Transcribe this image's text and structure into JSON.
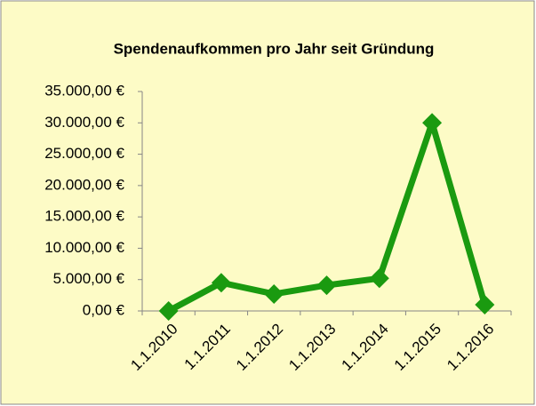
{
  "chart_data": {
    "type": "line",
    "title": "Spendenaufkommen pro Jahr seit Gründung",
    "categories": [
      "1.1.2010",
      "1.1.2011",
      "1.1.2012",
      "1.1.2013",
      "1.1.2014",
      "1.1.2015",
      "1.1.2016"
    ],
    "series": [
      {
        "name": "Spendenaufkommen",
        "color": "#1a9a10",
        "values": [
          0,
          4500,
          2700,
          4100,
          5200,
          30000,
          1000
        ]
      }
    ],
    "ylim": [
      0,
      35000
    ],
    "yticks": [
      {
        "value": 0,
        "label": "0,00 €"
      },
      {
        "value": 5000,
        "label": "5.000,00 €"
      },
      {
        "value": 10000,
        "label": "10.000,00 €"
      },
      {
        "value": 15000,
        "label": "15.000,00 €"
      },
      {
        "value": 20000,
        "label": "20.000,00 €"
      },
      {
        "value": 25000,
        "label": "25.000,00 €"
      },
      {
        "value": 30000,
        "label": "30.000,00 €"
      },
      {
        "value": 35000,
        "label": "35.000,00 €"
      }
    ],
    "grid": false,
    "legend": false
  }
}
